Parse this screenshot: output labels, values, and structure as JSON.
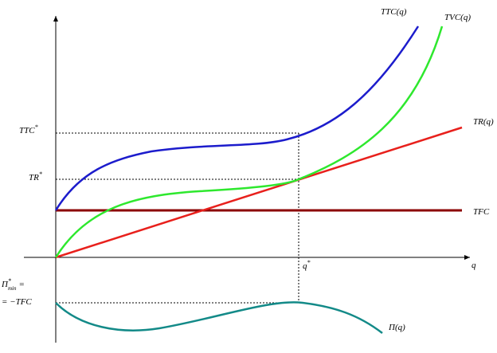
{
  "labels": {
    "ttc_curve": "TTC(q)",
    "tvc_curve": "TVC(q)",
    "tr_curve": "TR(q)",
    "tfc_line": "TFC",
    "ttc_star": {
      "base": "TTC",
      "sup": "*"
    },
    "tr_star": {
      "base": "TR",
      "sup": "*"
    },
    "q_star": {
      "base": "q",
      "sup": "*"
    },
    "x_axis": "q",
    "profit_curve": "Π(q)",
    "profit_min": {
      "base": "Π",
      "sup": "*",
      "sub": "min",
      "eq": "=",
      "line2": "= −TFC"
    }
  }
}
